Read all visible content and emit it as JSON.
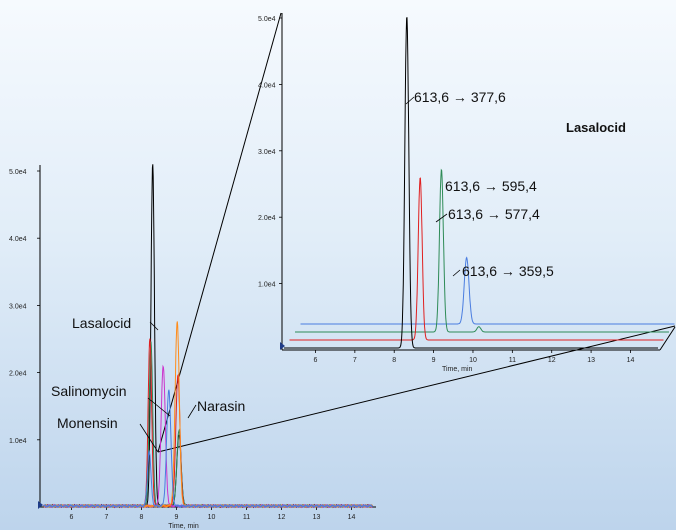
{
  "chart_data": [
    {
      "type": "line",
      "name": "overview",
      "xlabel": "Time, min",
      "x_ticks": [
        6,
        7,
        8,
        9,
        10,
        11,
        12,
        13,
        14
      ],
      "y_ticks": [
        "1.0e4",
        "2.0e4",
        "3.0e4",
        "4.0e4",
        "5.0e4"
      ],
      "xlim": [
        5.1,
        14.7
      ],
      "ylim": [
        0,
        55000
      ],
      "series": [
        {
          "color": "#000000",
          "peaks": [
            {
              "rt": 8.32,
              "height": 50000,
              "width": 0.05
            },
            {
              "rt": 9.07,
              "height": 10500,
              "width": 0.06
            }
          ]
        },
        {
          "color": "#2e8b57",
          "peaks": [
            {
              "rt": 8.27,
              "height": 24000,
              "width": 0.05
            },
            {
              "rt": 9.07,
              "height": 11000,
              "width": 0.06
            }
          ]
        },
        {
          "color": "#e02020",
          "peaks": [
            {
              "rt": 8.24,
              "height": 24500,
              "width": 0.05
            },
            {
              "rt": 9.04,
              "height": 19000,
              "width": 0.06
            }
          ]
        },
        {
          "color": "#cc33cc",
          "peaks": [
            {
              "rt": 8.62,
              "height": 20500,
              "width": 0.06
            }
          ]
        },
        {
          "color": "#ff8c1a",
          "peaks": [
            {
              "rt": 9.02,
              "height": 27000,
              "width": 0.06
            }
          ]
        },
        {
          "color": "#4a7de0",
          "peaks": [
            {
              "rt": 8.78,
              "height": 17000,
              "width": 0.06
            },
            {
              "rt": 8.22,
              "height": 8000,
              "width": 0.05
            }
          ]
        }
      ],
      "annotations": [
        {
          "text": "Lasalocid",
          "target_rt": 8.27,
          "target_y": 24000
        },
        {
          "text": "Salinomycin",
          "target_rt": 8.7,
          "target_y": 12500
        },
        {
          "text": "Monensin",
          "target_rt": 8.22,
          "target_y": 8000
        },
        {
          "text": "Narasin",
          "target_rt": 9.07,
          "target_y": 16000
        }
      ]
    },
    {
      "type": "line",
      "name": "inset",
      "title": "Lasalocid",
      "xlabel": "Time, min",
      "x_ticks": [
        6,
        7,
        8,
        9,
        10,
        11,
        12,
        13,
        14
      ],
      "y_ticks": [
        "1.0e4",
        "2.0e4",
        "3.0e4",
        "4.0e4",
        "5.0e4"
      ],
      "xlim": [
        5.15,
        14.75
      ],
      "ylim": [
        0,
        50000
      ],
      "series": [
        {
          "name": "613,6 → 377,6",
          "color": "#000000",
          "peaks": [
            {
              "rt": 8.32,
              "height": 50000,
              "width": 0.05
            }
          ]
        },
        {
          "name": "613,6 → 595,4",
          "color": "#e02020",
          "peaks": [
            {
              "rt": 8.52,
              "height": 24500,
              "width": 0.05
            }
          ]
        },
        {
          "name": "613,6 → 577,4",
          "color": "#2e8b57",
          "peaks": [
            {
              "rt": 8.92,
              "height": 24500,
              "width": 0.05
            },
            {
              "rt": 9.87,
              "height": 800,
              "width": 0.05
            }
          ]
        },
        {
          "name": "613,6 → 359,5",
          "color": "#4a7de0",
          "peaks": [
            {
              "rt": 9.42,
              "height": 10000,
              "width": 0.06
            }
          ]
        }
      ]
    }
  ]
}
